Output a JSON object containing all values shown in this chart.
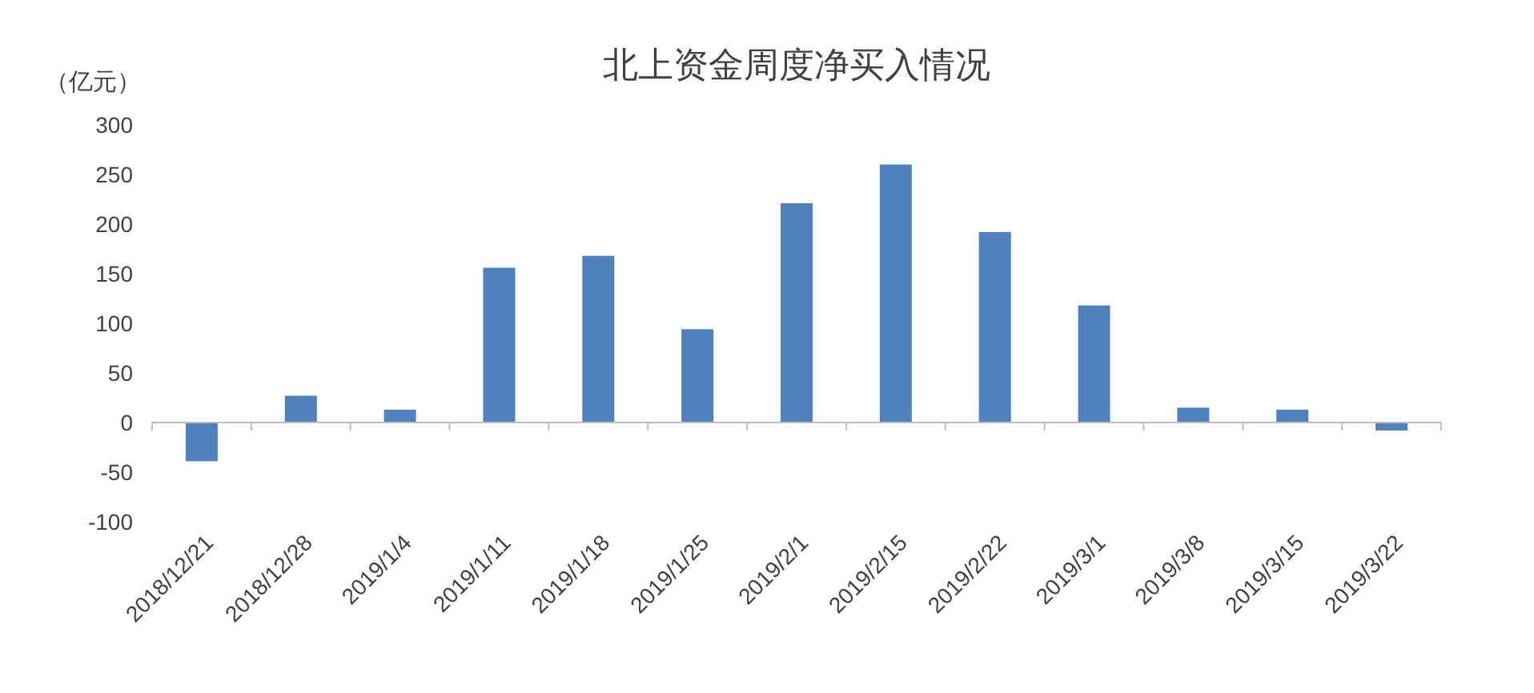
{
  "chart_data": {
    "type": "bar",
    "title": "北上资金周度净买入情况",
    "ylabel": "（亿元）",
    "categories": [
      "2018/12/21",
      "2018/12/28",
      "2019/1/4",
      "2019/1/11",
      "2019/1/18",
      "2019/1/25",
      "2019/2/1",
      "2019/2/15",
      "2019/2/22",
      "2019/3/1",
      "2019/3/8",
      "2019/3/15",
      "2019/3/22"
    ],
    "values": [
      -39,
      27,
      13,
      156,
      168,
      94,
      221,
      260,
      192,
      118,
      15,
      13,
      -8
    ],
    "color": "#4f81bd",
    "ylim": [
      -100,
      300
    ],
    "yticks": [
      -100,
      -50,
      0,
      50,
      100,
      150,
      200,
      250,
      300
    ]
  }
}
